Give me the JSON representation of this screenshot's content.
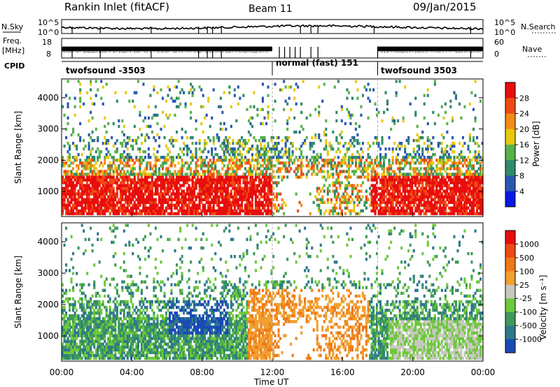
{
  "header": {
    "title": "Rankin Inlet (fitACF)",
    "beam": "Beam 11",
    "date": "09/Jan/2015"
  },
  "top_panels": {
    "nsky_label": "N.Sky",
    "nsky_ticks_left": [
      "10^5",
      "10^0"
    ],
    "nsearch_label": "N.Search",
    "nsearch_ticks_right": [
      "10^5",
      "10^0"
    ],
    "freq_label": "Freq.",
    "freq_unit": "[MHz]",
    "freq_ticks": [
      "18",
      "8"
    ],
    "nave_label": "Nave",
    "nave_ticks": [
      "60",
      "0"
    ],
    "cpid_label": "CPID",
    "cpid_segments": [
      {
        "label": "twofsound -3503",
        "start_hour": 0
      },
      {
        "label": "normal (fast) 151",
        "start_hour": 12
      },
      {
        "label": "twofsound 3503",
        "start_hour": 18
      }
    ]
  },
  "chart_data": [
    {
      "type": "heatmap",
      "name": "power",
      "ylabel": "Slant Range [km]",
      "y_ticks": [
        1000,
        2000,
        3000,
        4000
      ],
      "ylim": [
        200,
        4600
      ],
      "xlim_hours": [
        0,
        24
      ],
      "colorbar": {
        "label": "Power [dB]",
        "ticks": [
          "28",
          "24",
          "20",
          "16",
          "12",
          "8",
          "4"
        ],
        "colors": [
          "#0a18e6",
          "#2a58b0",
          "#2f8a6a",
          "#56b24a",
          "#e8c80e",
          "#f48a18",
          "#f04a14",
          "#e80e0e"
        ]
      }
    },
    {
      "type": "heatmap",
      "name": "velocity",
      "ylabel": "Slant Range [km]",
      "xlabel": "Time UT",
      "y_ticks": [
        1000,
        2000,
        3000,
        4000
      ],
      "ylim": [
        200,
        4600
      ],
      "xlim_hours": [
        0,
        24
      ],
      "x_ticks": [
        "00:00",
        "04:00",
        "08:00",
        "12:00",
        "16:00",
        "20:00",
        "00:00"
      ],
      "colorbar": {
        "label": "Velocity [m s⁻¹]",
        "ticks": [
          "1000",
          "500",
          "100",
          "25",
          "-25",
          "-100",
          "-500",
          "-1000"
        ],
        "colors": [
          "#1a4ab4",
          "#2e7a8a",
          "#3e9a5a",
          "#6ec83c",
          "#c8c8c0",
          "#f0a030",
          "#f07818",
          "#f04a14",
          "#e80e0e"
        ]
      }
    }
  ]
}
